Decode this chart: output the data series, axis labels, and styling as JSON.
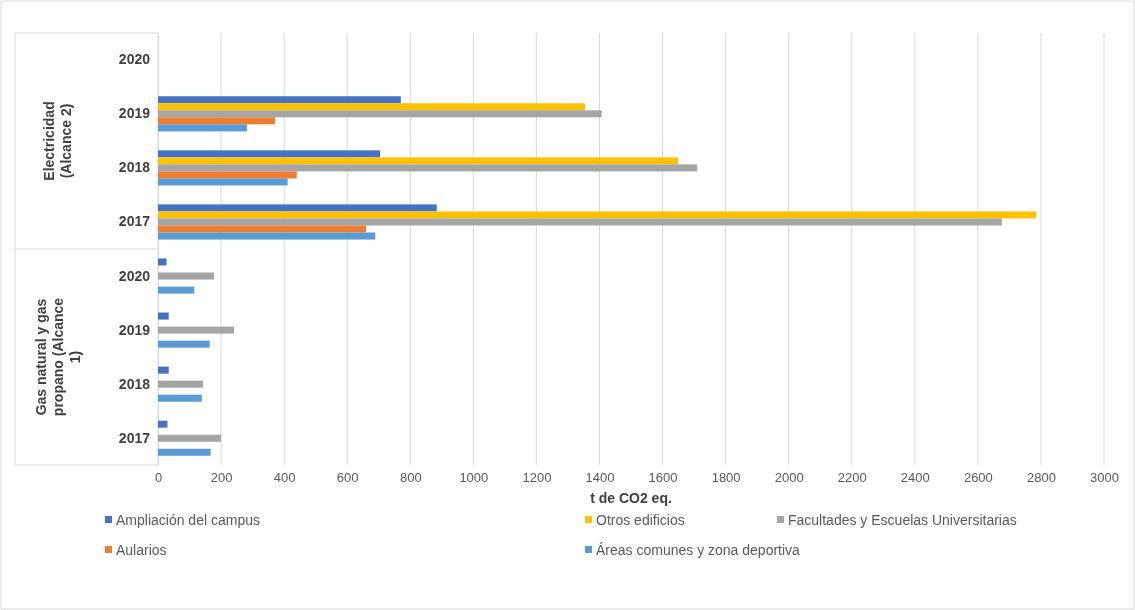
{
  "chart_data": {
    "type": "bar",
    "orientation": "horizontal",
    "xlabel": "t de CO2 eq.",
    "categories": [
      "2020",
      "2019",
      "2018",
      "2017",
      "2020",
      "2019",
      "2018",
      "2017"
    ],
    "annotations": [
      "Electricidad (Alcance 2)",
      "Gas natural y gas propano (Alcance 1)"
    ],
    "series": [
      {
        "name": "Ampliación del campus",
        "color": "#4472c4",
        "values": [
          null,
          770,
          704,
          884,
          27,
          34,
          34,
          30
        ]
      },
      {
        "name": "Otros edificios",
        "color": "#ffc000",
        "values": [
          null,
          1354,
          1649,
          2785,
          null,
          null,
          null,
          null
        ]
      },
      {
        "name": "Facultades y Escuelas Universitarias",
        "color": "#a5a5a5",
        "values": [
          null,
          1407,
          1710,
          2676,
          178,
          241,
          143,
          200
        ]
      },
      {
        "name": "Aularios",
        "color": "#ed7d31",
        "values": [
          null,
          371,
          440,
          660,
          null,
          null,
          null,
          null
        ]
      },
      {
        "name": "Áreas comunes y zona deportiva",
        "color": "#5b9bd5",
        "values": [
          null,
          282,
          411,
          689,
          115,
          164,
          139,
          167
        ]
      }
    ],
    "xlim": [
      0,
      3000
    ],
    "xticks": [
      0,
      200,
      400,
      600,
      800,
      1000,
      1200,
      1400,
      1600,
      1800,
      2000,
      2200,
      2400,
      2600,
      2800,
      3000
    ],
    "grid": "x",
    "legend": "bottom"
  }
}
